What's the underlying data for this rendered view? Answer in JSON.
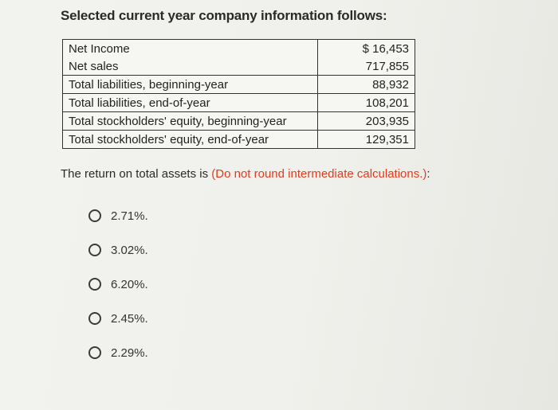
{
  "intro_text": "Selected current year company information follows:",
  "info_table": [
    {
      "label": "Net Income",
      "value": "$ 16,453"
    },
    {
      "label": "Net sales",
      "value": "717,855"
    },
    {
      "label": "Total liabilities, beginning-year",
      "value": "88,932"
    },
    {
      "label": "Total liabilities, end-of-year",
      "value": "108,201"
    },
    {
      "label": "Total stockholders' equity, beginning-year",
      "value": "203,935"
    },
    {
      "label": "Total stockholders' equity, end-of-year",
      "value": "129,351"
    }
  ],
  "question": {
    "text": "The return on total assets is ",
    "note": "(Do not round intermediate calculations.)",
    "suffix": ":"
  },
  "options": [
    {
      "label": "2.71%."
    },
    {
      "label": "3.02%."
    },
    {
      "label": "6.20%."
    },
    {
      "label": "2.45%."
    },
    {
      "label": "2.29%."
    }
  ],
  "colors": {
    "note": "#e33b1f"
  }
}
